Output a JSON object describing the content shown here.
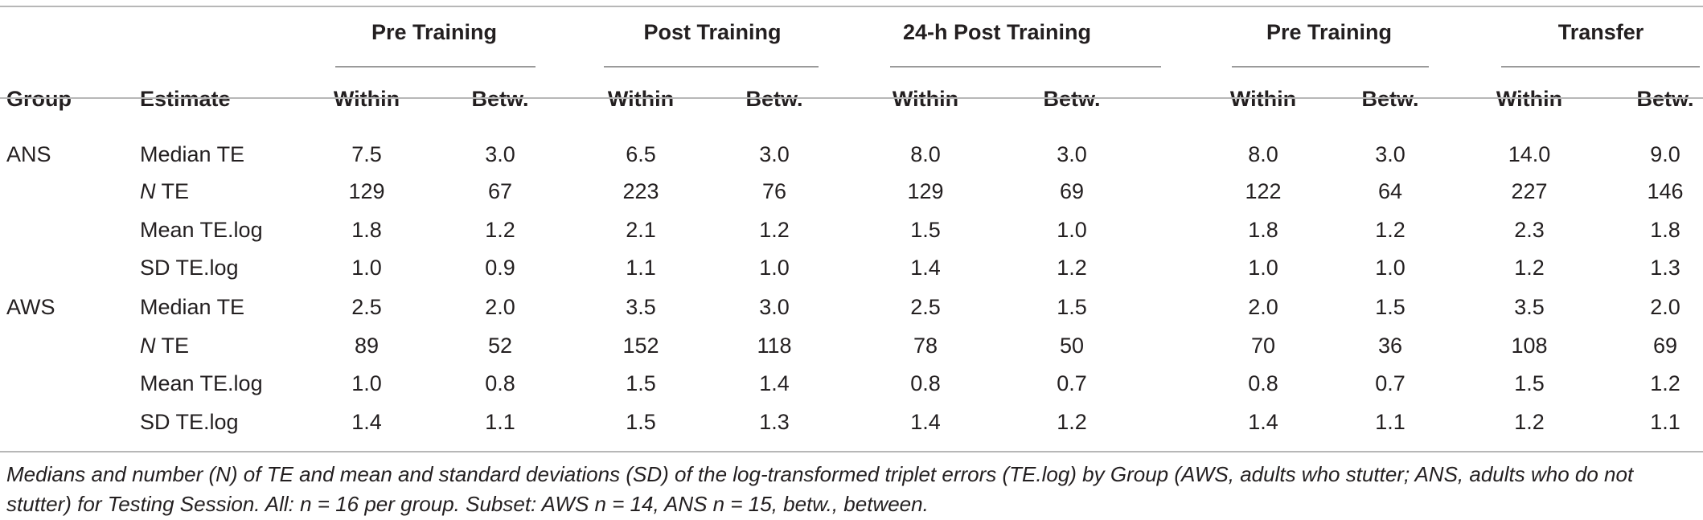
{
  "header": {
    "groups": [
      "Pre Training",
      "Post Training",
      "24-h Post Training",
      "Pre Training",
      "Transfer"
    ],
    "group_label": "Group",
    "estimate_label": "Estimate",
    "sub": [
      "Within",
      "Betw."
    ]
  },
  "rows": [
    {
      "group": "ANS",
      "estimate": "Median TE",
      "est_prefix": "",
      "values": [
        "7.5",
        "3.0",
        "6.5",
        "3.0",
        "8.0",
        "3.0",
        "8.0",
        "3.0",
        "14.0",
        "9.0"
      ]
    },
    {
      "group": "",
      "estimate": " TE",
      "est_prefix": "N",
      "values": [
        "129",
        "67",
        "223",
        "76",
        "129",
        "69",
        "122",
        "64",
        "227",
        "146"
      ]
    },
    {
      "group": "",
      "estimate": "Mean TE.log",
      "est_prefix": "",
      "values": [
        "1.8",
        "1.2",
        "2.1",
        "1.2",
        "1.5",
        "1.0",
        "1.8",
        "1.2",
        "2.3",
        "1.8"
      ]
    },
    {
      "group": "",
      "estimate": "SD TE.log",
      "est_prefix": "",
      "values": [
        "1.0",
        "0.9",
        "1.1",
        "1.0",
        "1.4",
        "1.2",
        "1.0",
        "1.0",
        "1.2",
        "1.3"
      ]
    },
    {
      "group": "AWS",
      "estimate": "Median TE",
      "est_prefix": "",
      "values": [
        "2.5",
        "2.0",
        "3.5",
        "3.0",
        "2.5",
        "1.5",
        "2.0",
        "1.5",
        "3.5",
        "2.0"
      ]
    },
    {
      "group": "",
      "estimate": " TE",
      "est_prefix": "N",
      "values": [
        "89",
        "52",
        "152",
        "118",
        "78",
        "50",
        "70",
        "36",
        "108",
        "69"
      ]
    },
    {
      "group": "",
      "estimate": "Mean TE.log",
      "est_prefix": "",
      "values": [
        "1.0",
        "0.8",
        "1.5",
        "1.4",
        "0.8",
        "0.7",
        "0.8",
        "0.7",
        "1.5",
        "1.2"
      ]
    },
    {
      "group": "",
      "estimate": "SD TE.log",
      "est_prefix": "",
      "values": [
        "1.4",
        "1.1",
        "1.5",
        "1.3",
        "1.4",
        "1.2",
        "1.4",
        "1.1",
        "1.2",
        "1.1"
      ]
    }
  ],
  "caption": "Medians and number (N) of TE and mean and standard deviations (SD) of the log-transformed triplet errors (TE.log) by Group (AWS, adults who stutter; ANS, adults who do not stutter) for Testing Session. All: n = 16 per group. Subset: AWS n = 14, ANS n = 15, betw., between."
}
